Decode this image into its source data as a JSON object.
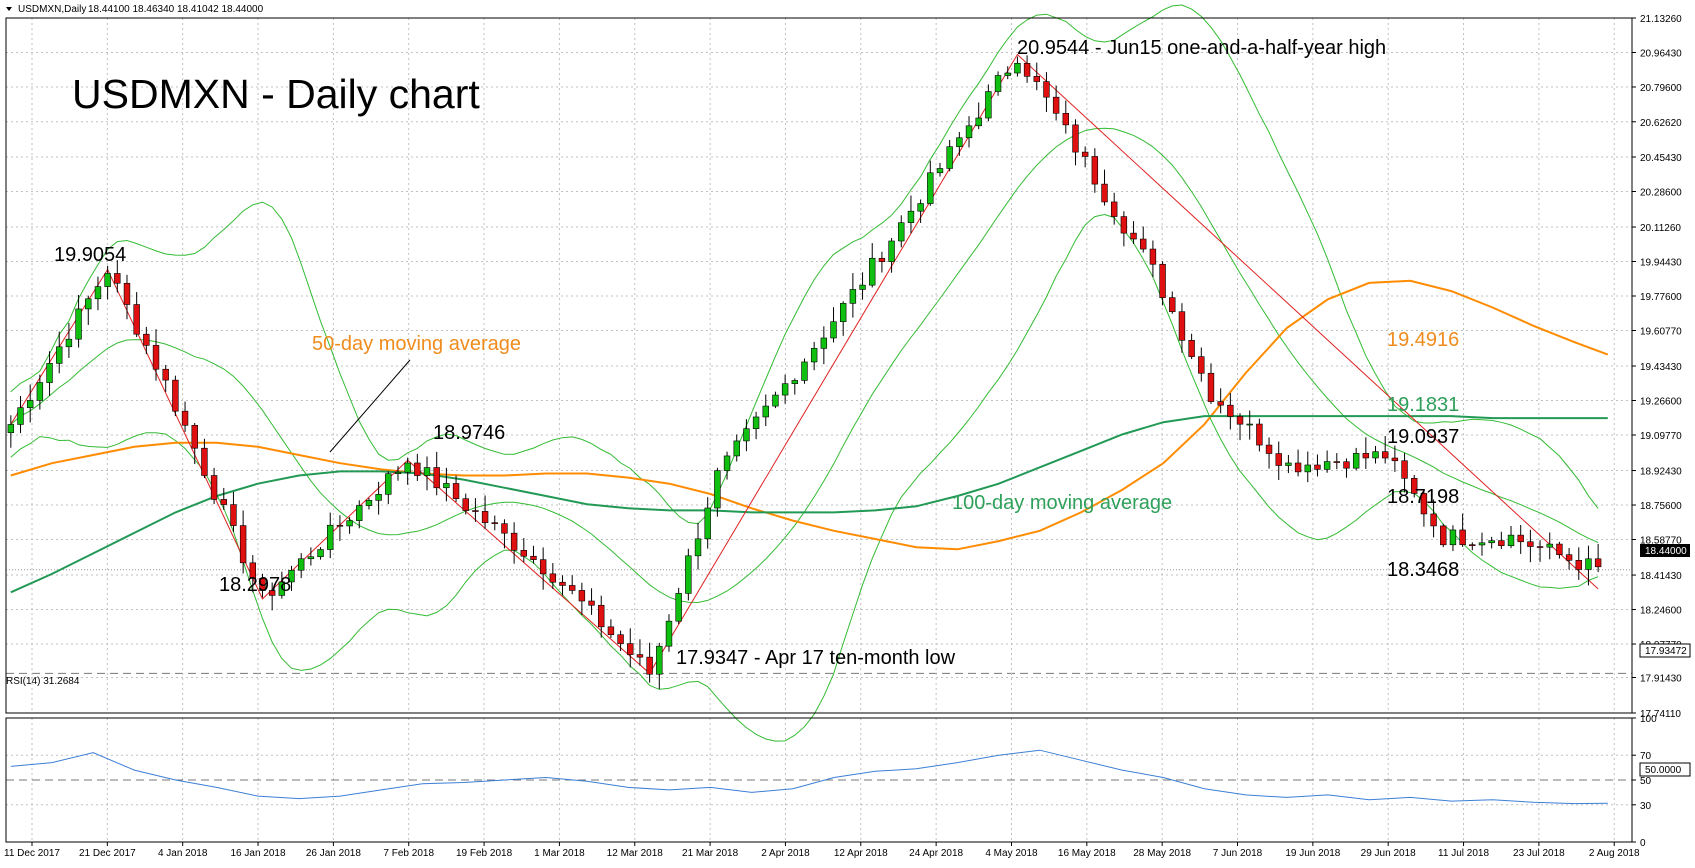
{
  "chart_data": {
    "type": "candlestick",
    "header": {
      "symbol": "USDMXN,Daily",
      "ohlc": "18.44100 18.46340 18.41042 18.44000"
    },
    "title": "USDMXN - Daily chart",
    "price_axis": {
      "ticks": [
        "21.13260",
        "20.96430",
        "20.79600",
        "20.62620",
        "20.45430",
        "20.28600",
        "20.11260",
        "19.94430",
        "19.77600",
        "19.60770",
        "19.43430",
        "19.26600",
        "19.09770",
        "18.92430",
        "18.75600",
        "18.58770",
        "18.41430",
        "18.24600",
        "18.07770",
        "17.91430",
        "17.74110"
      ],
      "ylim": [
        17.7411,
        21.1326
      ],
      "current_price": "18.44000",
      "low_marker": "17.93472"
    },
    "date_axis": [
      "11 Dec 2017",
      "21 Dec 2017",
      "4 Jan 2018",
      "16 Jan 2018",
      "26 Jan 2018",
      "7 Feb 2018",
      "19 Feb 2018",
      "1 Mar 2018",
      "12 Mar 2018",
      "21 Mar 2018",
      "2 Apr 2018",
      "12 Apr 2018",
      "24 Apr 2018",
      "4 May 2018",
      "16 May 2018",
      "28 May 2018",
      "7 Jun 2018",
      "19 Jun 2018",
      "29 Jun 2018",
      "11 Jul 2018",
      "23 Jul 2018",
      "2 Aug 2018"
    ],
    "colors": {
      "bull": "#10c010",
      "bear": "#e01010",
      "ma50": "#ff8c00",
      "ma100": "#229955",
      "bollinger": "#33bb33",
      "trendline": "#e02020",
      "rsi": "#3c7fd6",
      "grid": "#c0c0c0",
      "ma50_label": "#f08c1e",
      "ma100_label": "#2ea05a"
    },
    "annotations": {
      "high": "20.9544 - Jun15 one-and-a-half-year high",
      "low": "17.9347 - Apr 17 ten-month low",
      "peak1": "19.9054",
      "trough1": "18.2978",
      "peak2": "18.9746",
      "ma50_label": "50-day moving average",
      "ma100_label": "100-day moving average",
      "ma50_value": "19.4916",
      "ma100_value": "19.1831",
      "level_upper_band": "19.0937",
      "level_mid_band": "18.7198",
      "level_last": "18.3468"
    },
    "series": [
      {
        "name": "50-day moving average",
        "points": [
          [
            0,
            18.9
          ],
          [
            2.5,
            18.96
          ],
          [
            5,
            19.0
          ],
          [
            7.5,
            19.04
          ],
          [
            10,
            19.06
          ],
          [
            12.5,
            19.06
          ],
          [
            15,
            19.04
          ],
          [
            17.5,
            19.0
          ],
          [
            20,
            18.96
          ],
          [
            22.5,
            18.93
          ],
          [
            25,
            18.91
          ],
          [
            27.5,
            18.9
          ],
          [
            30,
            18.9
          ],
          [
            32.5,
            18.91
          ],
          [
            35,
            18.91
          ],
          [
            37.5,
            18.89
          ],
          [
            40,
            18.86
          ],
          [
            42.5,
            18.81
          ],
          [
            45,
            18.74
          ],
          [
            47.5,
            18.68
          ],
          [
            50,
            18.63
          ],
          [
            52.5,
            18.59
          ],
          [
            55,
            18.55
          ],
          [
            57.5,
            18.54
          ],
          [
            60,
            18.58
          ],
          [
            62.5,
            18.63
          ],
          [
            65,
            18.72
          ],
          [
            67.5,
            18.83
          ],
          [
            70,
            18.96
          ],
          [
            72.5,
            19.15
          ],
          [
            75,
            19.4
          ],
          [
            77.5,
            19.62
          ],
          [
            80,
            19.76
          ],
          [
            82.5,
            19.84
          ],
          [
            85,
            19.85
          ],
          [
            87.5,
            19.8
          ],
          [
            90,
            19.72
          ],
          [
            92.5,
            19.63
          ],
          [
            95,
            19.55
          ],
          [
            97,
            19.49
          ]
        ]
      },
      {
        "name": "100-day moving average",
        "points": [
          [
            0,
            18.33
          ],
          [
            2.5,
            18.42
          ],
          [
            5,
            18.52
          ],
          [
            7.5,
            18.62
          ],
          [
            10,
            18.72
          ],
          [
            12.5,
            18.8
          ],
          [
            15,
            18.86
          ],
          [
            17.5,
            18.9
          ],
          [
            20,
            18.92
          ],
          [
            22.5,
            18.92
          ],
          [
            25,
            18.91
          ],
          [
            27.5,
            18.88
          ],
          [
            30,
            18.84
          ],
          [
            32.5,
            18.8
          ],
          [
            35,
            18.76
          ],
          [
            37.5,
            18.74
          ],
          [
            40,
            18.73
          ],
          [
            42.5,
            18.73
          ],
          [
            45,
            18.72
          ],
          [
            47.5,
            18.72
          ],
          [
            50,
            18.72
          ],
          [
            52.5,
            18.73
          ],
          [
            55,
            18.75
          ],
          [
            57.5,
            18.8
          ],
          [
            60,
            18.86
          ],
          [
            62.5,
            18.94
          ],
          [
            65,
            19.02
          ],
          [
            67.5,
            19.1
          ],
          [
            70,
            19.16
          ],
          [
            72.5,
            19.19
          ],
          [
            75,
            19.19
          ],
          [
            77.5,
            19.19
          ],
          [
            80,
            19.19
          ],
          [
            82.5,
            19.19
          ],
          [
            85,
            19.19
          ],
          [
            87.5,
            19.19
          ],
          [
            90,
            19.18
          ],
          [
            92.5,
            19.18
          ],
          [
            95,
            19.18
          ],
          [
            97,
            19.18
          ]
        ]
      },
      {
        "name": "RSI(14) 31.2684",
        "points": [
          [
            0,
            61
          ],
          [
            2.5,
            64
          ],
          [
            5,
            72
          ],
          [
            7.5,
            58
          ],
          [
            10,
            50
          ],
          [
            12.5,
            44
          ],
          [
            15,
            37
          ],
          [
            17.5,
            35
          ],
          [
            20,
            37
          ],
          [
            22.5,
            42
          ],
          [
            25,
            47
          ],
          [
            27.5,
            48
          ],
          [
            30,
            50
          ],
          [
            32.5,
            52
          ],
          [
            35,
            49
          ],
          [
            37.5,
            44
          ],
          [
            40,
            42
          ],
          [
            42.5,
            44
          ],
          [
            45,
            40
          ],
          [
            47.5,
            43
          ],
          [
            50,
            52
          ],
          [
            52.5,
            57
          ],
          [
            55,
            59
          ],
          [
            57.5,
            64
          ],
          [
            60,
            70
          ],
          [
            62.5,
            74
          ],
          [
            65,
            66
          ],
          [
            67.5,
            58
          ],
          [
            70,
            52
          ],
          [
            72.5,
            43
          ],
          [
            75,
            38
          ],
          [
            77.5,
            36
          ],
          [
            80,
            38
          ],
          [
            82.5,
            34
          ],
          [
            85,
            36
          ],
          [
            87.5,
            33
          ],
          [
            90,
            34
          ],
          [
            92.5,
            32
          ],
          [
            95,
            31
          ],
          [
            97,
            31.27
          ]
        ]
      }
    ],
    "rsi": {
      "label": "RSI(14) 31.2684",
      "ticks": [
        "100",
        "70",
        "50",
        "30",
        "0"
      ],
      "current_level": "50.0000"
    }
  }
}
